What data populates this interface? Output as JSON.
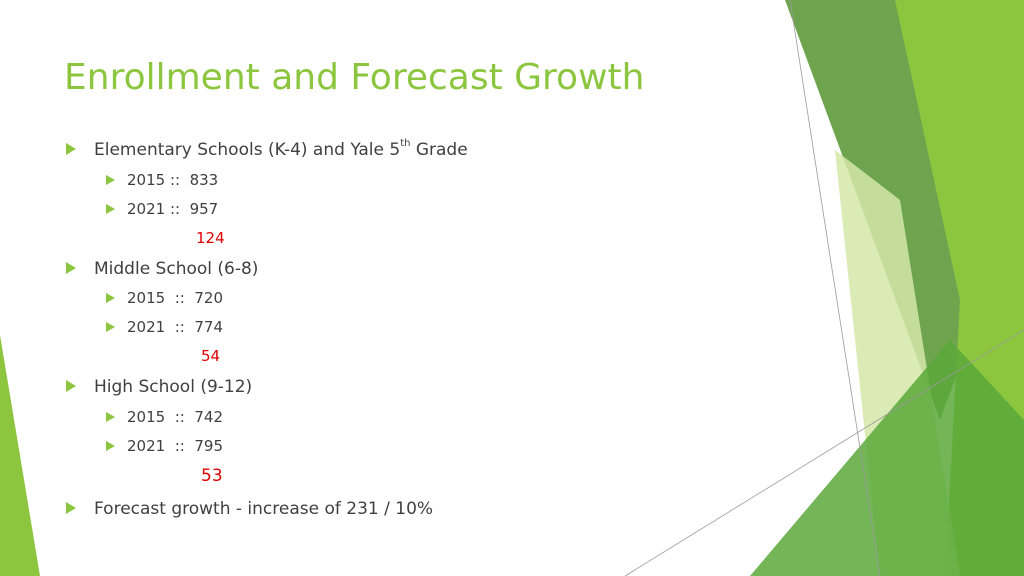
{
  "title": "Enrollment and Forecast Growth",
  "colors": {
    "title": "#8cc63f",
    "bullet": "#8cc63f",
    "body_text": "#404040",
    "difference": "#e00000",
    "decor_dark": "#5f9a3c",
    "decor_mid": "#8cc63f",
    "decor_light": "#d3e8a8"
  },
  "sections": [
    {
      "label_pre": "Elementary Schools (K-4) and Yale 5",
      "label_sup": "th",
      "label_post": " Grade",
      "items": [
        "2015 ::  833",
        "2021 ::  957"
      ],
      "difference": "124"
    },
    {
      "label_pre": "Middle School (6-8)",
      "label_sup": "",
      "label_post": "",
      "items": [
        "2015  ::  720",
        "2021  ::  774"
      ],
      "difference": "54"
    },
    {
      "label_pre": "High School (9-12)",
      "label_sup": "",
      "label_post": "",
      "items": [
        "2015  ::  742",
        "2021  ::  795"
      ],
      "difference": "53"
    }
  ],
  "summary": "Forecast growth - increase of 231 / 10%",
  "icons": {
    "bullet": "triangle-right-icon"
  }
}
